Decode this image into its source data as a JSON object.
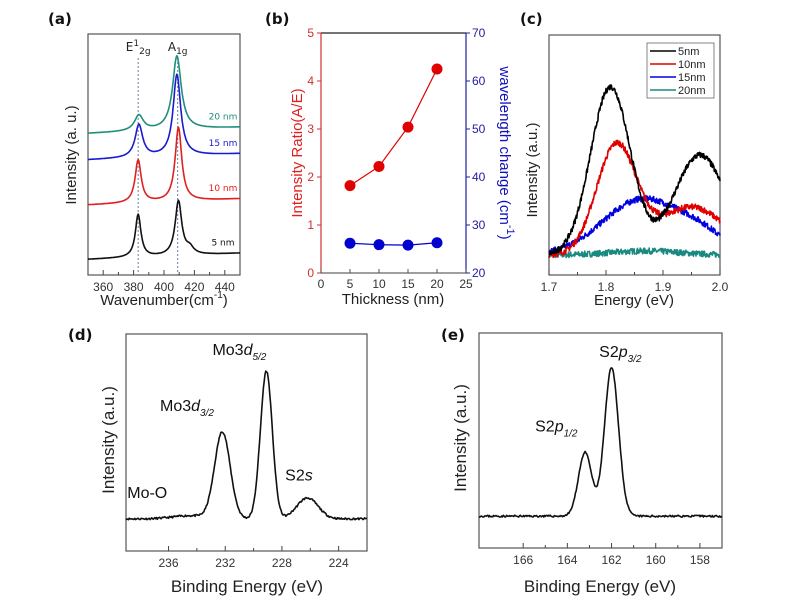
{
  "chart_data": [
    {
      "id": "a",
      "panel_label": "(a)",
      "type": "line",
      "title": "",
      "xlabel": "Wavenumber(cm",
      "xlabel_sup": "-1",
      "xlabel_close": ")",
      "ylabel": "Intensity (a. u.)",
      "xlim": [
        350,
        450
      ],
      "xticks": [
        360,
        380,
        400,
        420,
        440
      ],
      "peak_markers": [
        {
          "x": 383,
          "label": "E",
          "sup": "1",
          "sub": "2g"
        },
        {
          "x": 409,
          "label": "A",
          "sub": "1g"
        }
      ],
      "series": [
        {
          "name": "5 nm",
          "color": "#111111",
          "offset": 0.0,
          "peaks": [
            {
              "x": 383,
              "h": 0.55,
              "w": 2.2
            },
            {
              "x": 409.5,
              "h": 0.7,
              "w": 2.6
            },
            {
              "x": 417,
              "h": 0.08,
              "w": 3
            }
          ]
        },
        {
          "name": "10 nm",
          "color": "#e02020",
          "offset": 0.7,
          "peaks": [
            {
              "x": 383,
              "h": 0.55,
              "w": 2.4
            },
            {
              "x": 409.5,
              "h": 0.95,
              "w": 2.6
            }
          ]
        },
        {
          "name": "15 nm",
          "color": "#1a1ad0",
          "offset": 1.28,
          "peaks": [
            {
              "x": 383.5,
              "h": 0.42,
              "w": 3.0
            },
            {
              "x": 408.5,
              "h": 1.05,
              "w": 3.0
            }
          ]
        },
        {
          "name": "20 nm",
          "color": "#1f8f7a",
          "offset": 1.62,
          "peaks": [
            {
              "x": 383.5,
              "h": 0.2,
              "w": 3.5
            },
            {
              "x": 408.5,
              "h": 0.95,
              "w": 3.4
            }
          ]
        }
      ],
      "ylim": [
        -0.2,
        2.9
      ]
    },
    {
      "id": "b",
      "panel_label": "(b)",
      "type": "scatter",
      "title": "",
      "xlabel": "Thickness (nm)",
      "ylabel_left": "Intensity Ratio(A/E)",
      "ylabel_right": "wavelength change (cm",
      "ylabel_right_sup": "-1",
      "ylabel_right_close": ")",
      "xlim": [
        0,
        25
      ],
      "xticks": [
        0,
        5,
        10,
        15,
        20,
        25
      ],
      "ylim_left": [
        0,
        5
      ],
      "yticks_left": [
        0,
        1,
        2,
        3,
        4,
        5
      ],
      "ylim_right": [
        20,
        70
      ],
      "yticks_right": [
        20,
        30,
        40,
        50,
        60,
        70
      ],
      "x": [
        5,
        10,
        15,
        20
      ],
      "series": [
        {
          "name": "Intensity Ratio(A/E)",
          "axis": "left",
          "color": "#e00000",
          "values": [
            1.82,
            2.22,
            3.04,
            4.25
          ]
        },
        {
          "name": "wavelength change",
          "axis": "right",
          "color": "#0000d0",
          "values": [
            26.2,
            25.9,
            25.8,
            26.3
          ]
        }
      ],
      "left_axis_color": "#d03030",
      "right_axis_color": "#2020a0"
    },
    {
      "id": "c",
      "panel_label": "(c)",
      "type": "line",
      "title": "",
      "xlabel": "Energy (eV)",
      "ylabel": "Intensity (a.u.)",
      "xlim": [
        1.7,
        2.0
      ],
      "xticks": [
        1.7,
        1.8,
        1.9,
        2.0
      ],
      "ylim": [
        0,
        1.2
      ],
      "legend": {
        "position": "top-right",
        "entries": [
          "5nm",
          "10nm",
          "15nm",
          "20nm"
        ]
      },
      "series": [
        {
          "name": "5nm",
          "color": "#000000",
          "base": 0.1,
          "peaks": [
            {
              "x": 1.808,
              "h": 0.84,
              "w": 0.035
            },
            {
              "x": 1.965,
              "h": 0.5,
              "w": 0.045
            }
          ]
        },
        {
          "name": "10nm",
          "color": "#e00000",
          "base": 0.1,
          "peaks": [
            {
              "x": 1.818,
              "h": 0.54,
              "w": 0.035
            },
            {
              "x": 1.95,
              "h": 0.24,
              "w": 0.06
            }
          ]
        },
        {
          "name": "15nm",
          "color": "#0000e0",
          "base": 0.1,
          "peaks": [
            {
              "x": 1.865,
              "h": 0.28,
              "w": 0.07
            },
            {
              "x": 1.97,
              "h": 0.07,
              "w": 0.04
            }
          ]
        },
        {
          "name": "20nm",
          "color": "#1a8a80",
          "base": 0.1,
          "peaks": [
            {
              "x": 1.87,
              "h": 0.02,
              "w": 0.06
            }
          ]
        }
      ]
    },
    {
      "id": "d",
      "panel_label": "(d)",
      "type": "line",
      "title": "",
      "xlabel": "Binding Energy (eV)",
      "ylabel": "Intensity (a.u.)",
      "xlim": [
        239,
        222
      ],
      "xticks": [
        236,
        232,
        228,
        224
      ],
      "ylim": [
        -0.2,
        1.15
      ],
      "annotations": [
        {
          "text": "Mo3",
          "italic": "d",
          "sub": "5/2",
          "x": 231.0,
          "y": 1.02
        },
        {
          "text": "Mo3",
          "italic": "d",
          "sub": "3/2",
          "x": 234.7,
          "y": 0.67
        },
        {
          "text": "Mo-O",
          "x": 237.5,
          "y": 0.13
        },
        {
          "text": "S2",
          "italic": "s",
          "x": 226.8,
          "y": 0.24
        }
      ],
      "series": [
        {
          "name": "Mo3d",
          "color": "#111111",
          "base": 0.0,
          "peaks": [
            {
              "x": 232.2,
              "h": 0.54,
              "w": 0.55
            },
            {
              "x": 229.1,
              "h": 0.92,
              "w": 0.42
            },
            {
              "x": 226.2,
              "h": 0.13,
              "w": 0.75
            },
            {
              "x": 234.5,
              "h": 0.02,
              "w": 1.2
            }
          ]
        }
      ]
    },
    {
      "id": "e",
      "panel_label": "(e)",
      "type": "line",
      "title": "",
      "xlabel": "Binding Energy (eV)",
      "ylabel": "Intensity (a.u.)",
      "xlim": [
        168,
        157
      ],
      "xticks": [
        166,
        164,
        162,
        160,
        158
      ],
      "ylim": [
        -0.2,
        1.15
      ],
      "annotations": [
        {
          "text": "S2",
          "italic": "p",
          "sub": "3/2",
          "x": 161.6,
          "y": 1.0
        },
        {
          "text": "S2",
          "italic": "p",
          "sub": "1/2",
          "x": 164.5,
          "y": 0.53
        }
      ],
      "series": [
        {
          "name": "S2p",
          "color": "#111111",
          "base": 0.0,
          "peaks": [
            {
              "x": 162.0,
              "h": 0.93,
              "w": 0.32
            },
            {
              "x": 163.2,
              "h": 0.4,
              "w": 0.3
            }
          ]
        }
      ]
    }
  ]
}
